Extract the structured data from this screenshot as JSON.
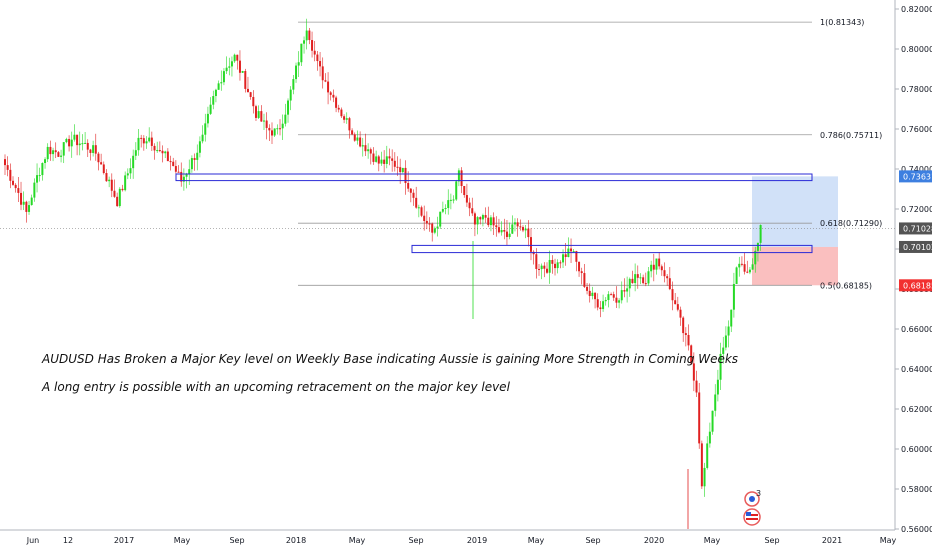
{
  "colors": {
    "up": "#26d926",
    "down": "#e02020",
    "zone_border": "#2a2ad6",
    "fib_line": "#9a9a9a",
    "target_fill": "#c9dcf7",
    "stop_fill": "#f9b4b4",
    "tag_blue": "#3d7fe0",
    "tag_dark": "#545454",
    "tag_red": "#f23030"
  },
  "chart_data": {
    "type": "candlestick",
    "symbol": "AUDUSD",
    "timeframe": "weekly",
    "x_labels": [
      "Jun",
      "12",
      "2017",
      "May",
      "Sep",
      "2018",
      "May",
      "Sep",
      "2019",
      "May",
      "Sep",
      "2020",
      "May",
      "Sep",
      "2021",
      "May"
    ],
    "y_ticks": [
      "0.82000",
      "0.80000",
      "0.78000",
      "0.76000",
      "0.74000",
      "0.72000",
      "0.70000",
      "0.68000",
      "0.66000",
      "0.64000",
      "0.62000",
      "0.60000",
      "0.58000",
      "0.56000"
    ],
    "ylim": [
      0.558,
      0.823
    ],
    "fib_levels": [
      {
        "label": "1(0.81343)",
        "value": 0.81343
      },
      {
        "label": "0.786(0.75711)",
        "value": 0.75711
      },
      {
        "label": "0.618(0.71290)",
        "value": 0.7129
      },
      {
        "label": "0.5(0.68185)",
        "value": 0.68185
      }
    ],
    "key_levels": [
      {
        "name": "upper key zone",
        "low": 0.7342,
        "high": 0.7375
      },
      {
        "name": "major key level",
        "low": 0.6982,
        "high": 0.7018
      }
    ],
    "position": {
      "side": "long",
      "target": 0.73631,
      "entry": 0.70102,
      "stop": 0.68185
    },
    "price_tags": [
      "0.73631",
      "0.71028",
      "0.70102",
      "0.68185"
    ],
    "last_price": 0.71028,
    "annotations": [
      "AUDUSD Has Broken a Major Key level on Weekly Base indicating Aussie is gaining More Strength in Coming Weeks",
      "A long entry is possible with an upcoming retracement on the major key level"
    ],
    "event_badge_count": "3",
    "path": [
      [
        0,
        0.742
      ],
      [
        5,
        0.728
      ],
      [
        8,
        0.718
      ],
      [
        12,
        0.736
      ],
      [
        16,
        0.75
      ],
      [
        20,
        0.748
      ],
      [
        25,
        0.755
      ],
      [
        30,
        0.752
      ],
      [
        34,
        0.748
      ],
      [
        38,
        0.736
      ],
      [
        42,
        0.724
      ],
      [
        46,
        0.738
      ],
      [
        50,
        0.754
      ],
      [
        54,
        0.756
      ],
      [
        58,
        0.748
      ],
      [
        62,
        0.744
      ],
      [
        66,
        0.734
      ],
      [
        70,
        0.744
      ],
      [
        74,
        0.755
      ],
      [
        78,
        0.775
      ],
      [
        82,
        0.79
      ],
      [
        86,
        0.796
      ],
      [
        90,
        0.783
      ],
      [
        94,
        0.768
      ],
      [
        98,
        0.76
      ],
      [
        102,
        0.758
      ],
      [
        106,
        0.773
      ],
      [
        110,
        0.795
      ],
      [
        113,
        0.812
      ],
      [
        117,
        0.792
      ],
      [
        121,
        0.781
      ],
      [
        126,
        0.768
      ],
      [
        132,
        0.755
      ],
      [
        136,
        0.75
      ],
      [
        140,
        0.743
      ],
      [
        144,
        0.744
      ],
      [
        148,
        0.741
      ],
      [
        152,
        0.73
      ],
      [
        156,
        0.717
      ],
      [
        160,
        0.708
      ],
      [
        164,
        0.719
      ],
      [
        168,
        0.725
      ],
      [
        170,
        0.737
      ],
      [
        173,
        0.722
      ],
      [
        176,
        0.712
      ],
      [
        180,
        0.716
      ],
      [
        184,
        0.71
      ],
      [
        188,
        0.706
      ],
      [
        192,
        0.714
      ],
      [
        196,
        0.705
      ],
      [
        199,
        0.692
      ],
      [
        203,
        0.691
      ],
      [
        207,
        0.694
      ],
      [
        212,
        0.7
      ],
      [
        216,
        0.686
      ],
      [
        219,
        0.677
      ],
      [
        223,
        0.672
      ],
      [
        226,
        0.678
      ],
      [
        229,
        0.676
      ],
      [
        233,
        0.68
      ],
      [
        236,
        0.688
      ],
      [
        240,
        0.685
      ],
      [
        244,
        0.695
      ],
      [
        247,
        0.688
      ],
      [
        250,
        0.676
      ],
      [
        253,
        0.663
      ],
      [
        256,
        0.65
      ],
      [
        259,
        0.63
      ],
      [
        261,
        0.58
      ],
      [
        263,
        0.6
      ],
      [
        265,
        0.62
      ],
      [
        268,
        0.645
      ],
      [
        271,
        0.66
      ],
      [
        274,
        0.693
      ],
      [
        277,
        0.688
      ],
      [
        280,
        0.692
      ],
      [
        283,
        0.712
      ]
    ]
  }
}
